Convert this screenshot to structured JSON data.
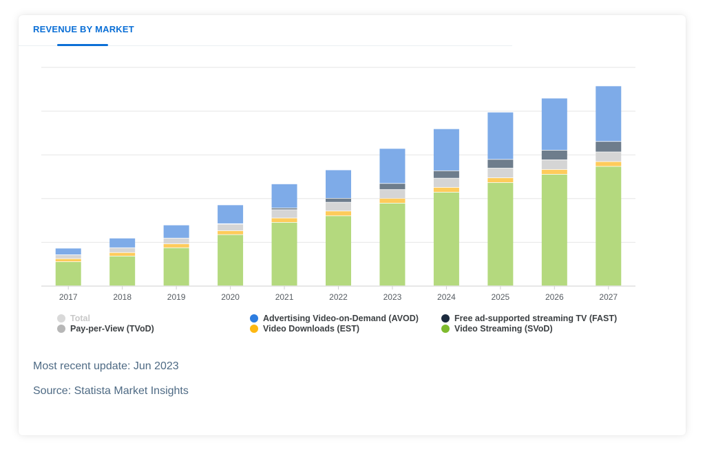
{
  "header": {
    "tab_label": "REVENUE BY MARKET"
  },
  "colors": {
    "svod": "#b4d97e",
    "est": "#fecb5b",
    "tvod": "#d5d5d5",
    "fast": "#6e7d8c",
    "avod": "#7eabe8",
    "grid": "#e6e6e6",
    "axis": "#cfcfcf"
  },
  "legend": [
    {
      "id": "total",
      "label": "Total",
      "color": "#d9d9d9",
      "muted": true
    },
    {
      "id": "tvod",
      "label": "Pay-per-View (TVoD)",
      "color": "#b7b7b7",
      "muted": false
    },
    {
      "id": "avod",
      "label": "Advertising Video-on-Demand (AVOD)",
      "color": "#2d7de0",
      "muted": false
    },
    {
      "id": "est",
      "label": "Video Downloads (EST)",
      "color": "#fdb813",
      "muted": false
    },
    {
      "id": "fast",
      "label": "Free ad-supported streaming TV (FAST)",
      "color": "#1c2b3e",
      "muted": false
    },
    {
      "id": "svod",
      "label": "Video Streaming (SVoD)",
      "color": "#7fbb2e",
      "muted": false
    }
  ],
  "chart_data": {
    "type": "bar",
    "stacked": true,
    "categories": [
      "2017",
      "2018",
      "2019",
      "2020",
      "2021",
      "2022",
      "2023",
      "2024",
      "2025",
      "2026",
      "2027"
    ],
    "ylim": [
      0,
      5
    ],
    "grid": true,
    "series": [
      {
        "name": "Video Streaming (SVoD)",
        "key": "svod",
        "values": [
          0.55,
          0.68,
          0.87,
          1.17,
          1.45,
          1.6,
          1.89,
          2.14,
          2.36,
          2.55,
          2.73
        ]
      },
      {
        "name": "Video Downloads (EST)",
        "key": "est",
        "values": [
          0.07,
          0.08,
          0.09,
          0.09,
          0.1,
          0.11,
          0.11,
          0.11,
          0.11,
          0.11,
          0.11
        ]
      },
      {
        "name": "Pay-per-View (TVoD)",
        "key": "tvod",
        "values": [
          0.09,
          0.11,
          0.13,
          0.15,
          0.19,
          0.2,
          0.2,
          0.21,
          0.22,
          0.22,
          0.22
        ]
      },
      {
        "name": "Free ad-supported streaming TV (FAST)",
        "key": "fast",
        "values": [
          0.0,
          0.0,
          0.0,
          0.01,
          0.04,
          0.09,
          0.14,
          0.17,
          0.2,
          0.22,
          0.24
        ]
      },
      {
        "name": "Advertising Video-on-Demand (AVOD)",
        "key": "avod",
        "values": [
          0.15,
          0.22,
          0.3,
          0.43,
          0.55,
          0.65,
          0.8,
          0.96,
          1.08,
          1.19,
          1.27
        ]
      }
    ]
  },
  "footer": {
    "update": "Most recent update: Jun 2023",
    "source": "Source: Statista Market Insights"
  }
}
